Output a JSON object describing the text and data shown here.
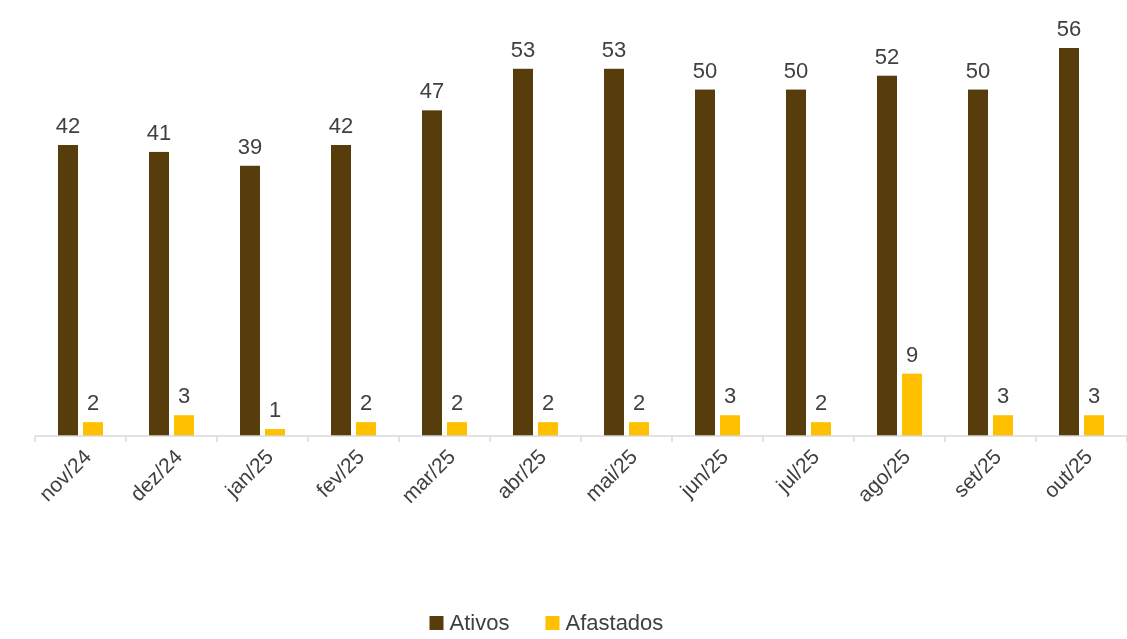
{
  "chart_data": {
    "type": "bar",
    "categories": [
      "nov/24",
      "dez/24",
      "jan/25",
      "fev/25",
      "mar/25",
      "abr/25",
      "mai/25",
      "jun/25",
      "jul/25",
      "ago/25",
      "set/25",
      "out/25"
    ],
    "series": [
      {
        "name": "Ativos",
        "color": "#563d0b",
        "values": [
          42,
          41,
          39,
          42,
          47,
          53,
          53,
          50,
          50,
          52,
          50,
          56
        ]
      },
      {
        "name": "Afastados",
        "color": "#ffc000",
        "values": [
          2,
          3,
          1,
          2,
          2,
          2,
          2,
          3,
          2,
          9,
          3,
          3
        ]
      }
    ],
    "data_labels": true,
    "legend": "bottom"
  }
}
